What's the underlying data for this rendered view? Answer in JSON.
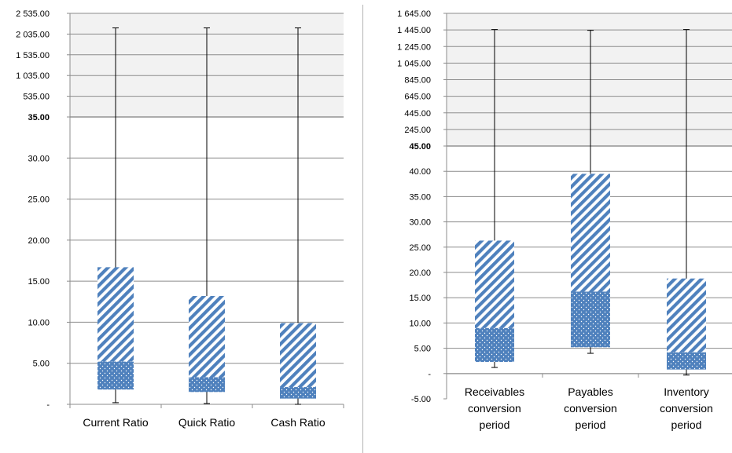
{
  "chart_data": [
    {
      "type": "boxplot",
      "title": "",
      "xlabel": "",
      "ylabel": "",
      "colors": {
        "box": "#4f81bd",
        "break_band": "#f2f2f2",
        "whisker": "#000000",
        "grid": "#8c8c8c"
      },
      "categories": [
        "Current Ratio",
        "Quick Ratio",
        "Cash Ratio"
      ],
      "series": [
        {
          "min": 0.2,
          "q1": 1.8,
          "median": 5.2,
          "q3": 16.7,
          "max": 2184
        },
        {
          "min": 0.1,
          "q1": 1.5,
          "median": 3.3,
          "q3": 13.2,
          "max": 2184
        },
        {
          "min": 0.0,
          "q1": 0.7,
          "median": 2.1,
          "q3": 9.9,
          "max": 2184
        }
      ],
      "axis": {
        "lower_range": [
          0,
          35
        ],
        "upper_range": [
          35,
          2535
        ],
        "lower_ticks": [
          {
            "value": 0,
            "label": "-"
          },
          {
            "value": 5,
            "label": "5.00"
          },
          {
            "value": 10,
            "label": "10.00"
          },
          {
            "value": 15,
            "label": "15.00"
          },
          {
            "value": 20,
            "label": "20.00"
          },
          {
            "value": 25,
            "label": "25.00"
          },
          {
            "value": 30,
            "label": "30.00"
          },
          {
            "value": 35,
            "label": "35.00",
            "bold": true
          }
        ],
        "upper_ticks": [
          {
            "value": 535,
            "label": "535.00"
          },
          {
            "value": 1035,
            "label": "1 035.00"
          },
          {
            "value": 1535,
            "label": "1 535.00"
          },
          {
            "value": 2035,
            "label": "2 035.00"
          },
          {
            "value": 2535,
            "label": "2 535.00"
          }
        ]
      }
    },
    {
      "type": "boxplot",
      "title": "",
      "xlabel": "",
      "ylabel": "",
      "colors": {
        "box": "#4f81bd",
        "break_band": "#f2f2f2",
        "whisker": "#000000",
        "grid": "#8c8c8c"
      },
      "categories": [
        [
          "Receivables",
          "conversion",
          "period"
        ],
        [
          "Payables",
          "conversion",
          "period"
        ],
        [
          "Inventory",
          "conversion",
          "period"
        ]
      ],
      "series": [
        {
          "min": 1.2,
          "q1": 2.3,
          "median": 9.0,
          "q3": 26.3,
          "max": 1450
        },
        {
          "min": 4.0,
          "q1": 5.2,
          "median": 16.2,
          "q3": 39.5,
          "max": 1440
        },
        {
          "min": -0.3,
          "q1": 0.8,
          "median": 4.2,
          "q3": 18.8,
          "max": 1450
        }
      ],
      "axis": {
        "lower_range": [
          -5,
          45
        ],
        "upper_range": [
          45,
          1645
        ],
        "lower_ticks": [
          {
            "value": -5,
            "label": "-5.00"
          },
          {
            "value": 0,
            "label": "-"
          },
          {
            "value": 5,
            "label": "5.00"
          },
          {
            "value": 10,
            "label": "10.00"
          },
          {
            "value": 15,
            "label": "15.00"
          },
          {
            "value": 20,
            "label": "20.00"
          },
          {
            "value": 25,
            "label": "25.00"
          },
          {
            "value": 30,
            "label": "30.00"
          },
          {
            "value": 35,
            "label": "35.00"
          },
          {
            "value": 40,
            "label": "40.00"
          },
          {
            "value": 45,
            "label": "45.00",
            "bold": true
          }
        ],
        "upper_ticks": [
          {
            "value": 245,
            "label": "245.00"
          },
          {
            "value": 445,
            "label": "445.00"
          },
          {
            "value": 645,
            "label": "645.00"
          },
          {
            "value": 845,
            "label": "845.00"
          },
          {
            "value": 1045,
            "label": "1 045.00"
          },
          {
            "value": 1245,
            "label": "1 245.00"
          },
          {
            "value": 1445,
            "label": "1 445.00"
          },
          {
            "value": 1645,
            "label": "1 645.00"
          }
        ]
      }
    }
  ]
}
